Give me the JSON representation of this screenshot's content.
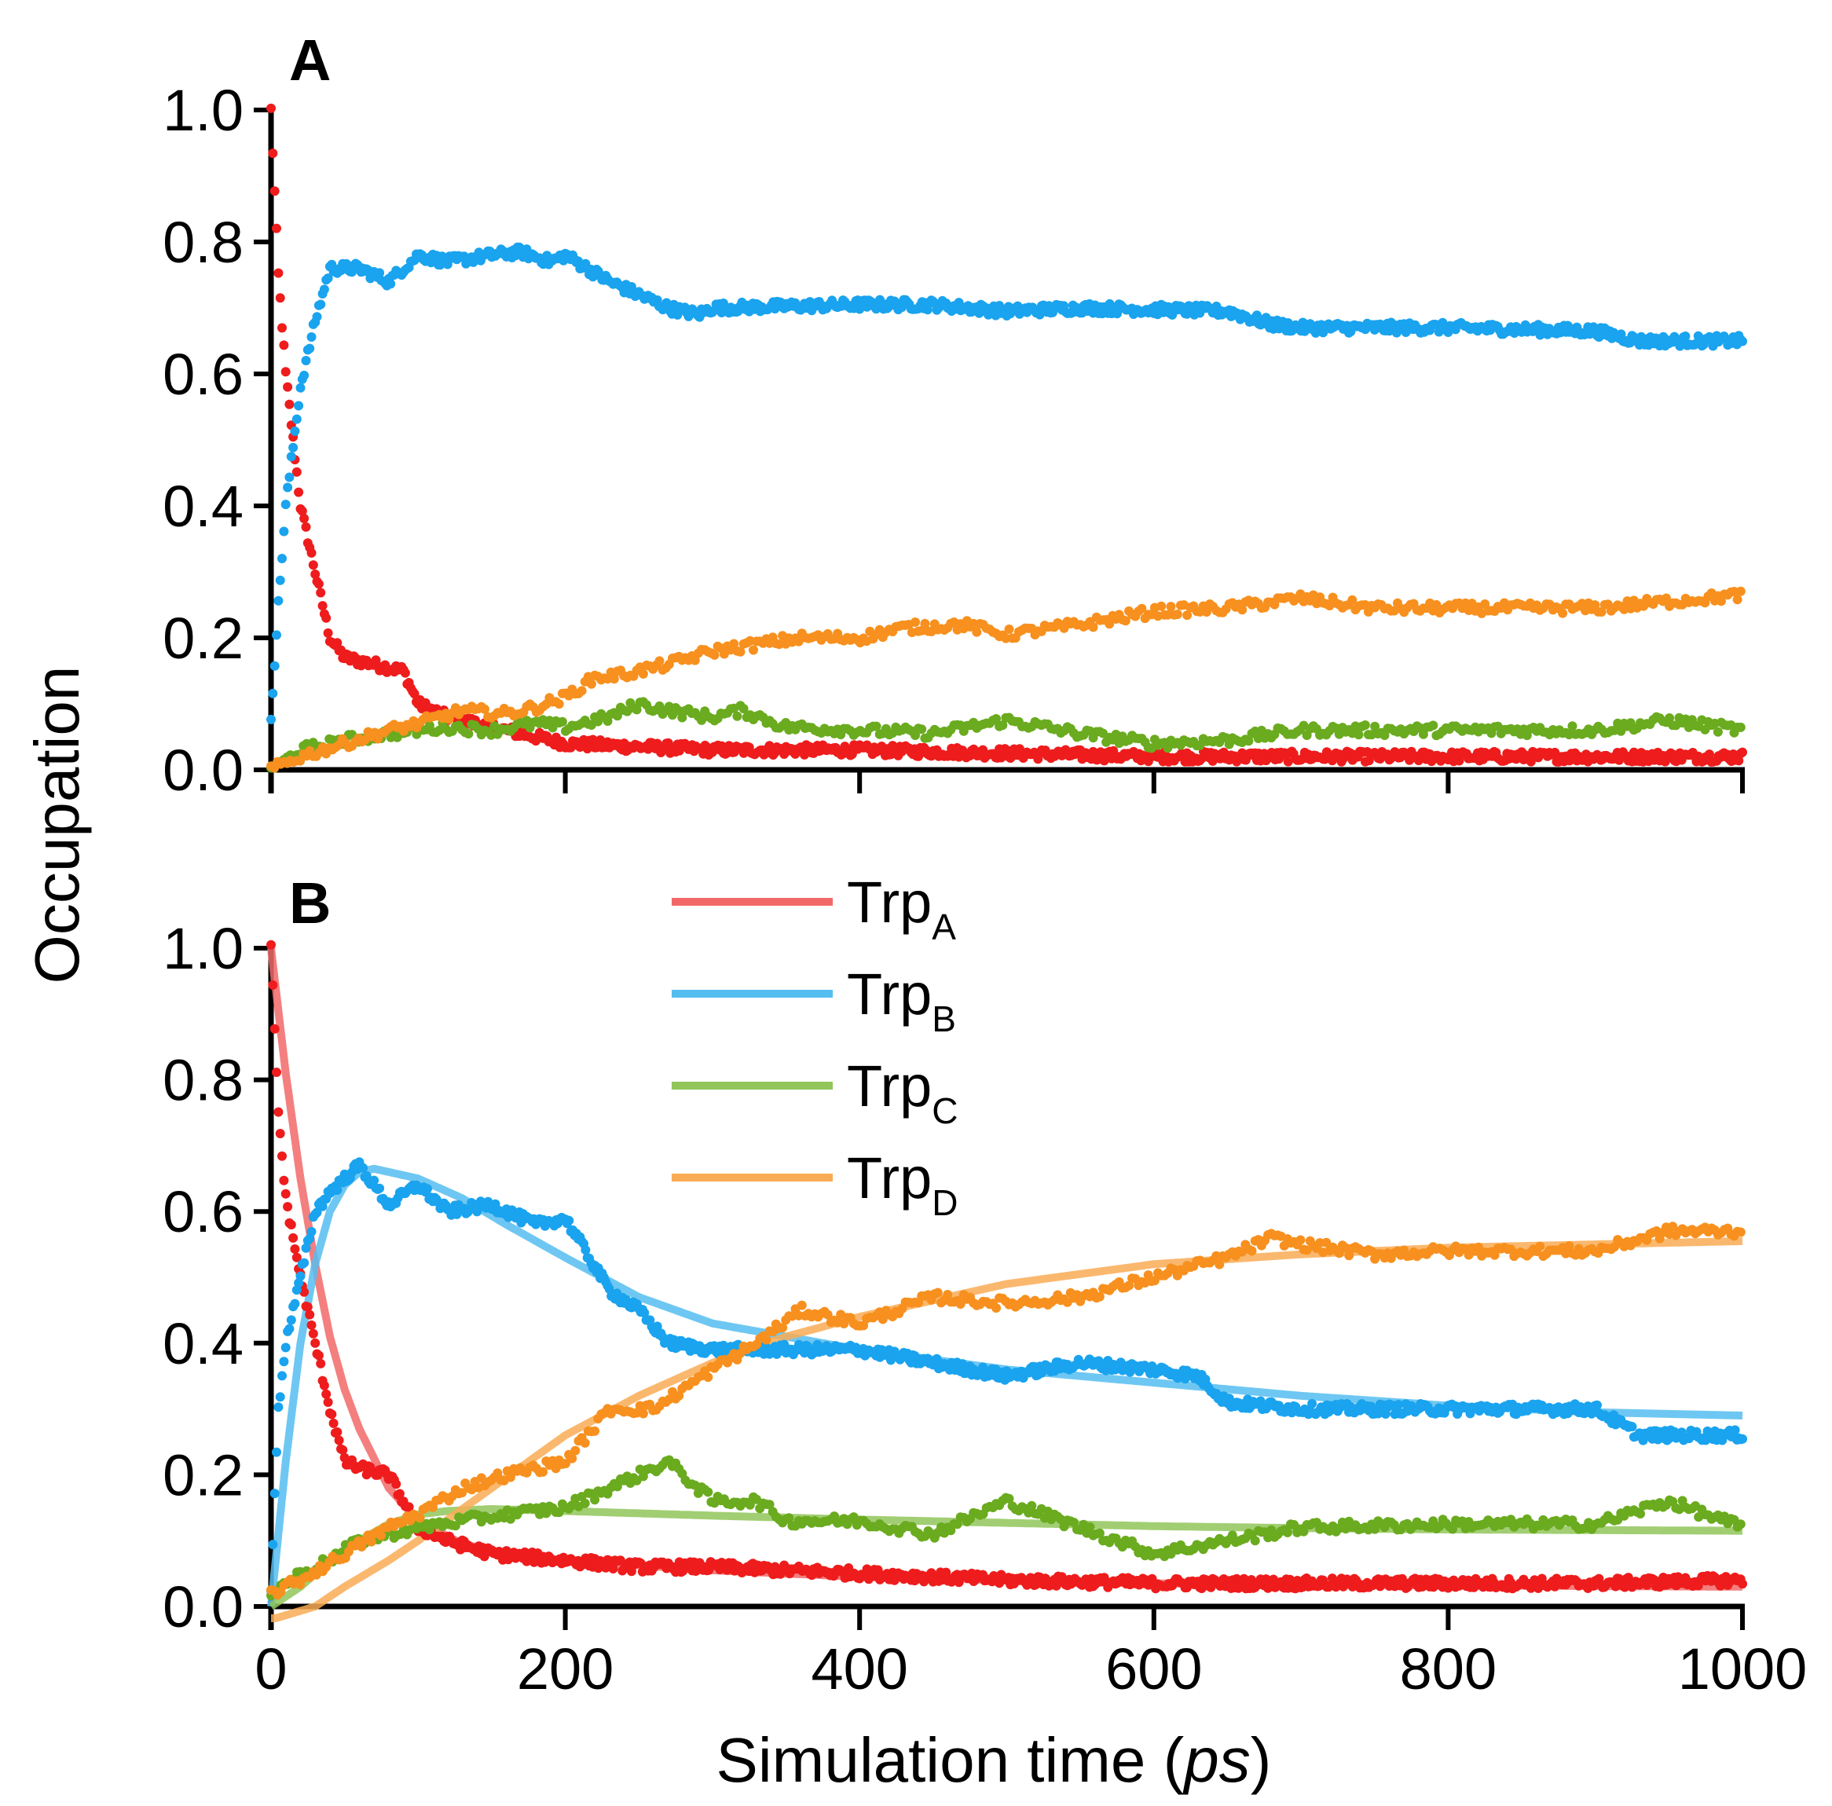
{
  "figure": {
    "ylabel": "Occupation",
    "xlabel_main": "Simulation time (",
    "xlabel_italic": "ps",
    "xlabel_end": ")"
  },
  "colors": {
    "TrpA": "#ee1c1c",
    "TrpB": "#1aa3ee",
    "TrpC": "#6aab1f",
    "TrpD": "#f7901e",
    "TrpA_fit": "#f26868",
    "TrpB_fit": "#55bdf0",
    "TrpC_fit": "#92c55a",
    "TrpD_fit": "#f9ab55"
  },
  "legend": [
    {
      "base": "Trp",
      "sub": "A",
      "series": "TrpA"
    },
    {
      "base": "Trp",
      "sub": "B",
      "series": "TrpB"
    },
    {
      "base": "Trp",
      "sub": "C",
      "series": "TrpC"
    },
    {
      "base": "Trp",
      "sub": "D",
      "series": "TrpD"
    }
  ],
  "chart_data": [
    {
      "panel": "A",
      "type": "scatter",
      "xlim": [
        0,
        1000
      ],
      "ylim": [
        0,
        1.0
      ],
      "xticks": [
        0,
        200,
        400,
        600,
        800,
        1000
      ],
      "yticks": [
        "0.0",
        "0.2",
        "0.4",
        "0.6",
        "0.8",
        "1.0"
      ],
      "show_xtick_labels": false,
      "series": [
        {
          "name": "TrpA",
          "x": [
            0,
            5,
            10,
            20,
            30,
            40,
            50,
            70,
            90,
            100,
            120,
            150,
            180,
            200,
            250,
            300,
            400,
            500,
            600,
            700,
            800,
            900,
            1000
          ],
          "y": [
            1.0,
            0.75,
            0.6,
            0.4,
            0.3,
            0.2,
            0.17,
            0.16,
            0.15,
            0.1,
            0.08,
            0.065,
            0.05,
            0.04,
            0.035,
            0.03,
            0.03,
            0.025,
            0.02,
            0.02,
            0.02,
            0.02,
            0.02
          ]
        },
        {
          "name": "TrpB",
          "x": [
            0,
            5,
            10,
            20,
            30,
            40,
            60,
            80,
            100,
            120,
            150,
            170,
            190,
            200,
            230,
            270,
            290,
            300,
            400,
            450,
            500,
            550,
            650,
            680,
            700,
            800,
            900,
            930,
            1000
          ],
          "y": [
            0.08,
            0.25,
            0.4,
            0.58,
            0.68,
            0.76,
            0.76,
            0.74,
            0.78,
            0.77,
            0.78,
            0.785,
            0.77,
            0.78,
            0.74,
            0.7,
            0.69,
            0.7,
            0.705,
            0.705,
            0.695,
            0.7,
            0.695,
            0.675,
            0.67,
            0.67,
            0.665,
            0.65,
            0.65
          ]
        },
        {
          "name": "TrpC",
          "x": [
            0,
            20,
            50,
            80,
            100,
            120,
            150,
            180,
            200,
            230,
            250,
            270,
            300,
            320,
            350,
            400,
            450,
            500,
            550,
            600,
            650,
            700,
            800,
            900,
            950,
            1000
          ],
          "y": [
            0.0,
            0.03,
            0.045,
            0.055,
            0.06,
            0.065,
            0.06,
            0.07,
            0.065,
            0.08,
            0.1,
            0.09,
            0.08,
            0.09,
            0.065,
            0.06,
            0.055,
            0.075,
            0.055,
            0.04,
            0.045,
            0.06,
            0.06,
            0.06,
            0.075,
            0.06
          ]
        },
        {
          "name": "TrpD",
          "x": [
            0,
            20,
            50,
            80,
            100,
            130,
            160,
            180,
            200,
            220,
            240,
            270,
            300,
            330,
            360,
            400,
            430,
            470,
            500,
            550,
            600,
            650,
            700,
            750,
            800,
            900,
            1000
          ],
          "y": [
            0.0,
            0.02,
            0.04,
            0.06,
            0.07,
            0.09,
            0.085,
            0.095,
            0.11,
            0.14,
            0.145,
            0.16,
            0.18,
            0.19,
            0.2,
            0.2,
            0.215,
            0.22,
            0.205,
            0.22,
            0.24,
            0.245,
            0.26,
            0.245,
            0.245,
            0.245,
            0.265
          ]
        }
      ]
    },
    {
      "panel": "B",
      "type": "scatter",
      "xlim": [
        0,
        1000
      ],
      "ylim": [
        0,
        1.0
      ],
      "xticks": [
        0,
        200,
        400,
        600,
        800,
        1000
      ],
      "xtick_labels": [
        "0",
        "200",
        "400",
        "600",
        "800",
        "1000"
      ],
      "yticks": [
        "0.0",
        "0.2",
        "0.4",
        "0.6",
        "0.8",
        "1.0"
      ],
      "series": [
        {
          "name": "TrpA",
          "x": [
            0,
            5,
            10,
            20,
            30,
            40,
            50,
            60,
            80,
            100,
            120,
            150,
            200,
            250,
            300,
            400,
            500,
            600,
            700,
            800,
            900,
            1000
          ],
          "y": [
            1.0,
            0.75,
            0.62,
            0.5,
            0.4,
            0.3,
            0.22,
            0.21,
            0.2,
            0.12,
            0.1,
            0.08,
            0.07,
            0.06,
            0.06,
            0.05,
            0.04,
            0.035,
            0.035,
            0.035,
            0.035,
            0.04
          ]
        },
        {
          "name": "TrpB",
          "x": [
            0,
            5,
            10,
            20,
            30,
            40,
            60,
            80,
            100,
            120,
            150,
            180,
            200,
            230,
            250,
            270,
            300,
            350,
            400,
            450,
            500,
            550,
            600,
            630,
            650,
            700,
            800,
            900,
            930,
            1000
          ],
          "y": [
            0.03,
            0.3,
            0.4,
            0.5,
            0.6,
            0.63,
            0.67,
            0.61,
            0.64,
            0.6,
            0.61,
            0.58,
            0.59,
            0.48,
            0.45,
            0.4,
            0.39,
            0.39,
            0.39,
            0.37,
            0.35,
            0.37,
            0.36,
            0.35,
            0.31,
            0.3,
            0.3,
            0.3,
            0.26,
            0.26
          ]
        },
        {
          "name": "TrpC",
          "x": [
            0,
            20,
            40,
            60,
            80,
            100,
            130,
            160,
            200,
            230,
            250,
            270,
            300,
            330,
            350,
            400,
            450,
            500,
            550,
            600,
            650,
            700,
            800,
            900,
            950,
            1000
          ],
          "y": [
            0.02,
            0.05,
            0.07,
            0.1,
            0.11,
            0.12,
            0.13,
            0.14,
            0.15,
            0.18,
            0.2,
            0.22,
            0.16,
            0.16,
            0.13,
            0.13,
            0.11,
            0.16,
            0.12,
            0.08,
            0.1,
            0.12,
            0.125,
            0.125,
            0.16,
            0.12
          ]
        },
        {
          "name": "TrpD",
          "x": [
            0,
            20,
            50,
            80,
            100,
            130,
            160,
            200,
            230,
            260,
            300,
            330,
            360,
            400,
            450,
            500,
            550,
            600,
            650,
            680,
            700,
            750,
            800,
            900,
            950,
            1000
          ],
          "y": [
            0.02,
            0.04,
            0.08,
            0.12,
            0.14,
            0.18,
            0.2,
            0.22,
            0.3,
            0.3,
            0.36,
            0.4,
            0.45,
            0.43,
            0.47,
            0.46,
            0.47,
            0.5,
            0.53,
            0.56,
            0.55,
            0.535,
            0.54,
            0.54,
            0.57,
            0.57
          ]
        }
      ],
      "fits": [
        {
          "name": "TrpA",
          "x": [
            0,
            10,
            20,
            30,
            40,
            50,
            60,
            80,
            100,
            130,
            160,
            200,
            300,
            400,
            500,
            600,
            700,
            800,
            900,
            1000
          ],
          "y": [
            1.0,
            0.81,
            0.65,
            0.52,
            0.41,
            0.33,
            0.27,
            0.18,
            0.13,
            0.095,
            0.08,
            0.07,
            0.055,
            0.045,
            0.04,
            0.035,
            0.033,
            0.032,
            0.031,
            0.03
          ]
        },
        {
          "name": "TrpB",
          "x": [
            0,
            10,
            20,
            30,
            40,
            50,
            60,
            70,
            80,
            100,
            130,
            160,
            200,
            250,
            300,
            350,
            400,
            500,
            600,
            700,
            800,
            900,
            1000
          ],
          "y": [
            0.0,
            0.22,
            0.4,
            0.52,
            0.6,
            0.64,
            0.66,
            0.665,
            0.66,
            0.65,
            0.62,
            0.58,
            0.53,
            0.47,
            0.43,
            0.41,
            0.39,
            0.36,
            0.34,
            0.32,
            0.305,
            0.295,
            0.29
          ]
        },
        {
          "name": "TrpC",
          "x": [
            0,
            20,
            40,
            60,
            80,
            100,
            120,
            150,
            200,
            300,
            400,
            500,
            600,
            700,
            800,
            900,
            1000
          ],
          "y": [
            0.0,
            0.03,
            0.07,
            0.1,
            0.125,
            0.14,
            0.145,
            0.148,
            0.145,
            0.138,
            0.132,
            0.127,
            0.122,
            0.119,
            0.117,
            0.116,
            0.115
          ]
        },
        {
          "name": "TrpD",
          "x": [
            0,
            30,
            50,
            80,
            100,
            150,
            200,
            250,
            300,
            350,
            400,
            500,
            600,
            700,
            800,
            900,
            1000
          ],
          "y": [
            -0.02,
            0.0,
            0.03,
            0.07,
            0.1,
            0.18,
            0.26,
            0.32,
            0.37,
            0.41,
            0.44,
            0.49,
            0.52,
            0.535,
            0.545,
            0.55,
            0.555
          ]
        }
      ]
    }
  ]
}
